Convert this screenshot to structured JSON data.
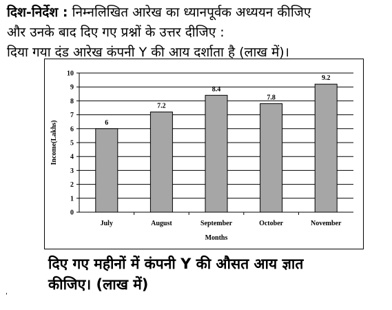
{
  "header": {
    "direction_label": "दिश-निर्देश :",
    "direction_text": "निम्नलिखित आरेख का ध्यानपूर्वक अध्ययन कीजिए",
    "line2": "और उनके बाद दिए गए प्रश्नों के उत्तर दीजिए :",
    "line3": "दिया गया दंड आरेख कंपनी Y की आय दर्शाता है (लाख में)।"
  },
  "question": {
    "line1": "दिए गए महीनों में कंपनी Y की औसत आय ज्ञात",
    "line2": "कीजिए। (लाख में)"
  },
  "stray_mark": "'",
  "chart_data": {
    "type": "bar",
    "categories": [
      "July",
      "August",
      "September",
      "October",
      "November"
    ],
    "values": [
      6,
      7.2,
      8.4,
      7.8,
      9.2
    ],
    "data_labels": [
      "6",
      "7.2",
      "8.4",
      "7.8",
      "9.2"
    ],
    "title": "",
    "xlabel": "Months",
    "ylabel": "Income(Lakhs)",
    "ylim": [
      0,
      10
    ],
    "yticks": [
      0,
      1,
      2,
      3,
      4,
      5,
      6,
      7,
      8,
      9,
      10
    ],
    "grid": true,
    "bar_color": "#a6a6a6",
    "gridline_color": "#000000"
  }
}
